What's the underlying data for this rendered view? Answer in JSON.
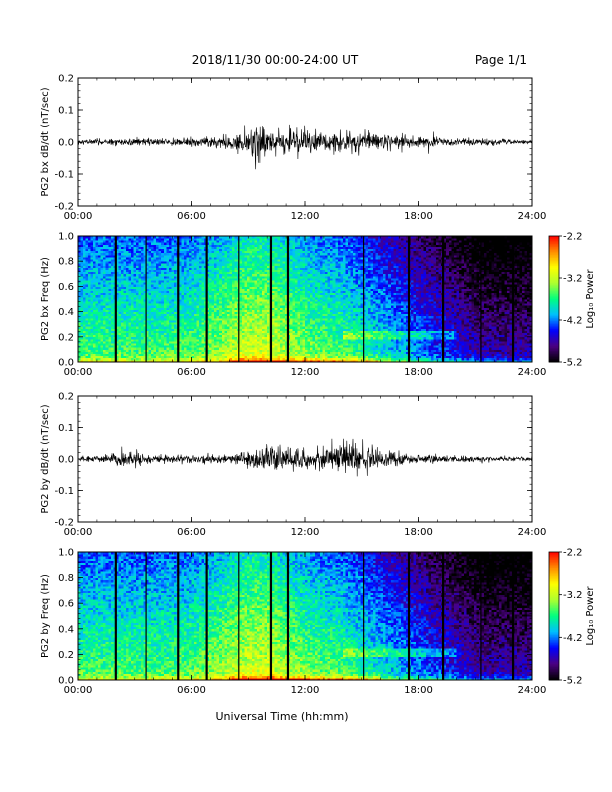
{
  "header": {
    "date_range": "2018/11/30  00:00-24:00 UT",
    "page": "Page 1/1"
  },
  "footer": {
    "xlabel": "Universal Time (hh:mm)"
  },
  "colorbar": {
    "label": "Log₁₀ Power",
    "ticks": [
      "-2.2",
      "-3.2",
      "-4.2",
      "-5.2"
    ]
  },
  "colors": {
    "trace": "#000000",
    "colormap": [
      "#000000",
      "#4b0082",
      "#0000ff",
      "#00bfff",
      "#00ff7f",
      "#adff2f",
      "#ffff00",
      "#ff8c00",
      "#ff0000"
    ]
  },
  "chart_data": [
    {
      "type": "line",
      "name": "bx-waveform",
      "ylabel": "PG2 bx dB/dt (nT/sec)",
      "xlim": [
        0,
        24
      ],
      "ylim": [
        -0.2,
        0.2
      ],
      "xticks": [
        "00:00",
        "06:00",
        "12:00",
        "18:00",
        "24:00"
      ],
      "yticks": [
        "-0.2",
        "-0.1",
        "0.0",
        "0.1",
        "0.2"
      ],
      "amplitude_envelope": {
        "hours": [
          0,
          2,
          4,
          6,
          8,
          9,
          9.5,
          10,
          10.5,
          11,
          12,
          13,
          14,
          15,
          16,
          17,
          18,
          20,
          22,
          24
        ],
        "amp": [
          0.006,
          0.01,
          0.01,
          0.012,
          0.018,
          0.04,
          0.07,
          0.03,
          0.035,
          0.04,
          0.035,
          0.03,
          0.03,
          0.028,
          0.022,
          0.02,
          0.015,
          0.012,
          0.008,
          0.006
        ]
      }
    },
    {
      "type": "heatmap",
      "name": "bx-spectrogram",
      "ylabel": "PG2 bx Freq (Hz)",
      "xlim": [
        0,
        24
      ],
      "ylim": [
        0,
        1
      ],
      "xticks": [
        "00:00",
        "06:00",
        "12:00",
        "18:00",
        "24:00"
      ],
      "yticks": [
        "0.0",
        "0.2",
        "0.4",
        "0.6",
        "0.8",
        "1.0"
      ],
      "zlim": [
        -5.2,
        -2.2
      ],
      "data_gap_hours": [
        2.0,
        3.6,
        5.3,
        6.8,
        8.5,
        10.2,
        11.1,
        15.1,
        17.5,
        19.3,
        21.3,
        23.0
      ]
    },
    {
      "type": "line",
      "name": "by-waveform",
      "ylabel": "PG2 by dB/dt (nT/sec)",
      "xlim": [
        0,
        24
      ],
      "ylim": [
        -0.2,
        0.2
      ],
      "xticks": [
        "00:00",
        "06:00",
        "12:00",
        "18:00",
        "24:00"
      ],
      "yticks": [
        "-0.2",
        "-0.1",
        "0.0",
        "0.1",
        "0.2"
      ],
      "amplitude_envelope": {
        "hours": [
          0,
          1.8,
          2.2,
          4,
          6,
          8,
          9,
          10,
          11,
          12,
          13,
          14,
          15,
          16,
          17,
          18,
          20,
          22,
          24
        ],
        "amp": [
          0.008,
          0.012,
          0.03,
          0.012,
          0.012,
          0.012,
          0.025,
          0.035,
          0.04,
          0.03,
          0.035,
          0.045,
          0.04,
          0.025,
          0.02,
          0.015,
          0.01,
          0.008,
          0.006
        ]
      }
    },
    {
      "type": "heatmap",
      "name": "by-spectrogram",
      "ylabel": "PG2 by Freq (Hz)",
      "xlim": [
        0,
        24
      ],
      "ylim": [
        0,
        1
      ],
      "xticks": [
        "00:00",
        "06:00",
        "12:00",
        "18:00",
        "24:00"
      ],
      "yticks": [
        "0.0",
        "0.2",
        "0.4",
        "0.6",
        "0.8",
        "1.0"
      ],
      "zlim": [
        -5.2,
        -2.2
      ],
      "data_gap_hours": [
        2.0,
        3.6,
        5.3,
        6.8,
        8.5,
        10.2,
        11.1,
        15.1,
        17.5,
        19.3,
        21.3,
        23.0
      ]
    }
  ]
}
